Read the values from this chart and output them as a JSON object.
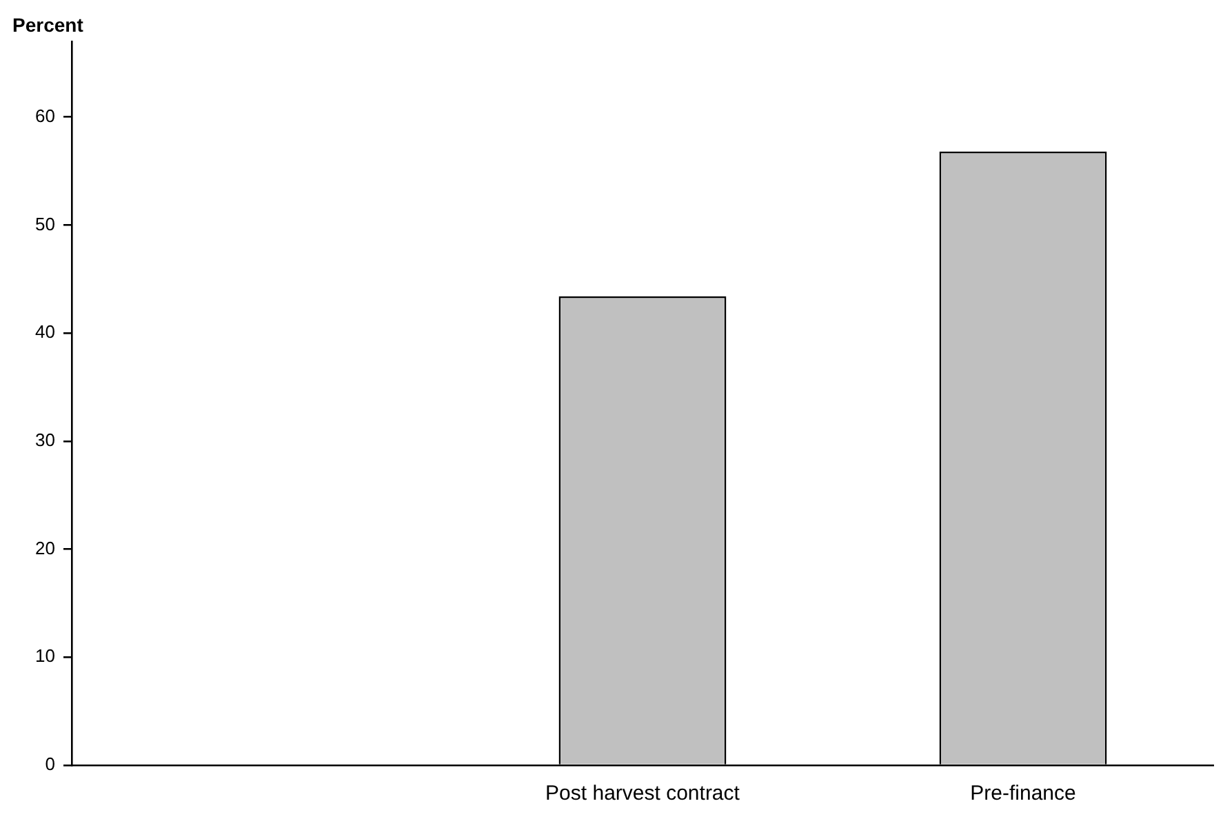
{
  "chart_data": {
    "type": "bar",
    "ylabel": "Percent",
    "categories": [
      null,
      "Post harvest contract",
      "Pre-finance"
    ],
    "values": [
      null,
      43.4,
      56.8
    ],
    "color": "#c0c0c0",
    "ylim": [
      0,
      67
    ],
    "yticks": [
      0,
      10,
      20,
      30,
      40,
      50,
      60
    ],
    "grid": false,
    "legend": false
  }
}
